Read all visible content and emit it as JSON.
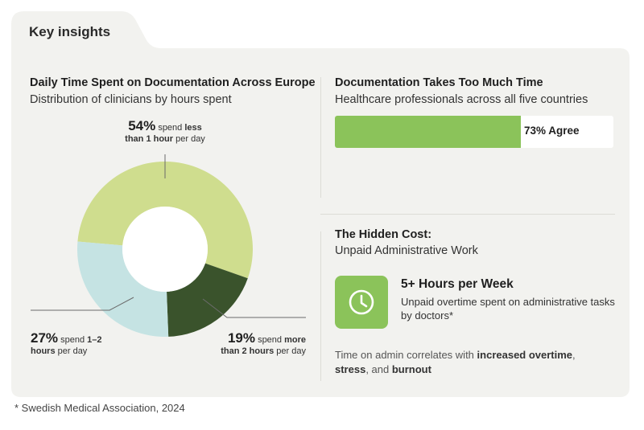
{
  "tab_title": "Key insights",
  "left_panel": {
    "title": "Daily Time Spent on Documentation Across Europe",
    "subtitle": "Distribution of clinicians by hours spent"
  },
  "chart_data": [
    {
      "type": "pie",
      "title": "Daily Time Spent on Documentation Across Europe",
      "subtitle": "Distribution of clinicians by hours spent",
      "categories": [
        "less than 1 hour per day",
        "more than 2 hours per day",
        "1–2 hours per day"
      ],
      "values": [
        54,
        19,
        27
      ],
      "colors": [
        "#cfdd8e",
        "#3a532c",
        "#c5e3e3"
      ],
      "labels": [
        {
          "pct": "54%",
          "pre": "spend ",
          "bold1": "less",
          "line2_bold": "than 1 hour",
          "line2_rest": " per day"
        },
        {
          "pct": "19%",
          "pre": "spend ",
          "bold1": "more",
          "line2_bold": "than 2 hours",
          "line2_rest": " per day"
        },
        {
          "pct": "27%",
          "pre": "spend ",
          "bold1": "1–2",
          "line2_bold": "hours",
          "line2_rest": " per day"
        }
      ]
    },
    {
      "type": "bar",
      "title": "Documentation Takes Too Much Time",
      "subtitle": "Healthcare professionals across all five countries",
      "categories": [
        "Agree"
      ],
      "values": [
        73
      ],
      "value_label": "73% Agree",
      "ylim": [
        0,
        100
      ],
      "color": "#8bc35a"
    }
  ],
  "hidden_cost": {
    "title": "The Hidden Cost:",
    "subtitle": "Unpaid Administrative Work",
    "icon": "clock-icon",
    "stat_title": "5+ Hours per Week",
    "stat_desc": "Unpaid overtime spent on administrative tasks by doctors*",
    "note_prefix": "Time on admin correlates with ",
    "note_bold1": "increased overtime",
    "note_sep1": ", ",
    "note_bold2": "stress",
    "note_sep2": ", and ",
    "note_bold3": "burnout"
  },
  "footnote": "* Swedish Medical Association, 2024",
  "colors": {
    "card_bg": "#f2f2ef",
    "accent_green": "#8bc35a"
  }
}
